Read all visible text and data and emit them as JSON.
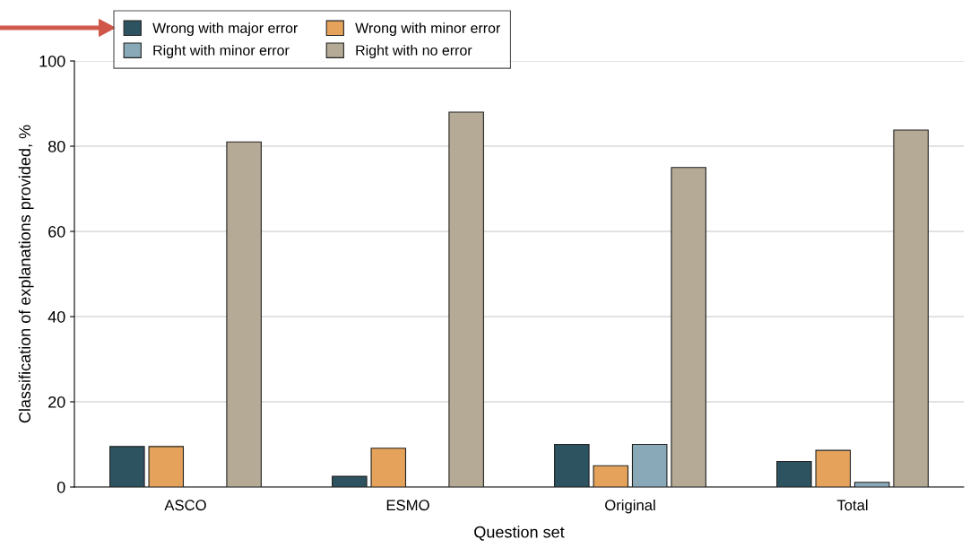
{
  "chart_data": {
    "type": "bar",
    "xlabel": "Question set",
    "ylabel": "Classification of explanations provided, %",
    "categories": [
      "ASCO",
      "ESMO",
      "Original",
      "Total"
    ],
    "series": [
      {
        "name": "Wrong with major error",
        "color": "#2d5361",
        "values": [
          9.5,
          2.5,
          10,
          6
        ]
      },
      {
        "name": "Wrong with minor error",
        "color": "#e5a25a",
        "values": [
          9.5,
          9.1,
          5,
          8.6
        ]
      },
      {
        "name": "Right with minor error",
        "color": "#89a9b8",
        "values": [
          null,
          null,
          10,
          1.1
        ]
      },
      {
        "name": "Right with no error",
        "color": "#b5aa96",
        "values": [
          81,
          88,
          75,
          83.8
        ]
      }
    ],
    "ylim": [
      0,
      100
    ],
    "yticks": [
      0,
      20,
      40,
      60,
      80,
      100
    ],
    "grid": "y",
    "legend": "top left"
  }
}
